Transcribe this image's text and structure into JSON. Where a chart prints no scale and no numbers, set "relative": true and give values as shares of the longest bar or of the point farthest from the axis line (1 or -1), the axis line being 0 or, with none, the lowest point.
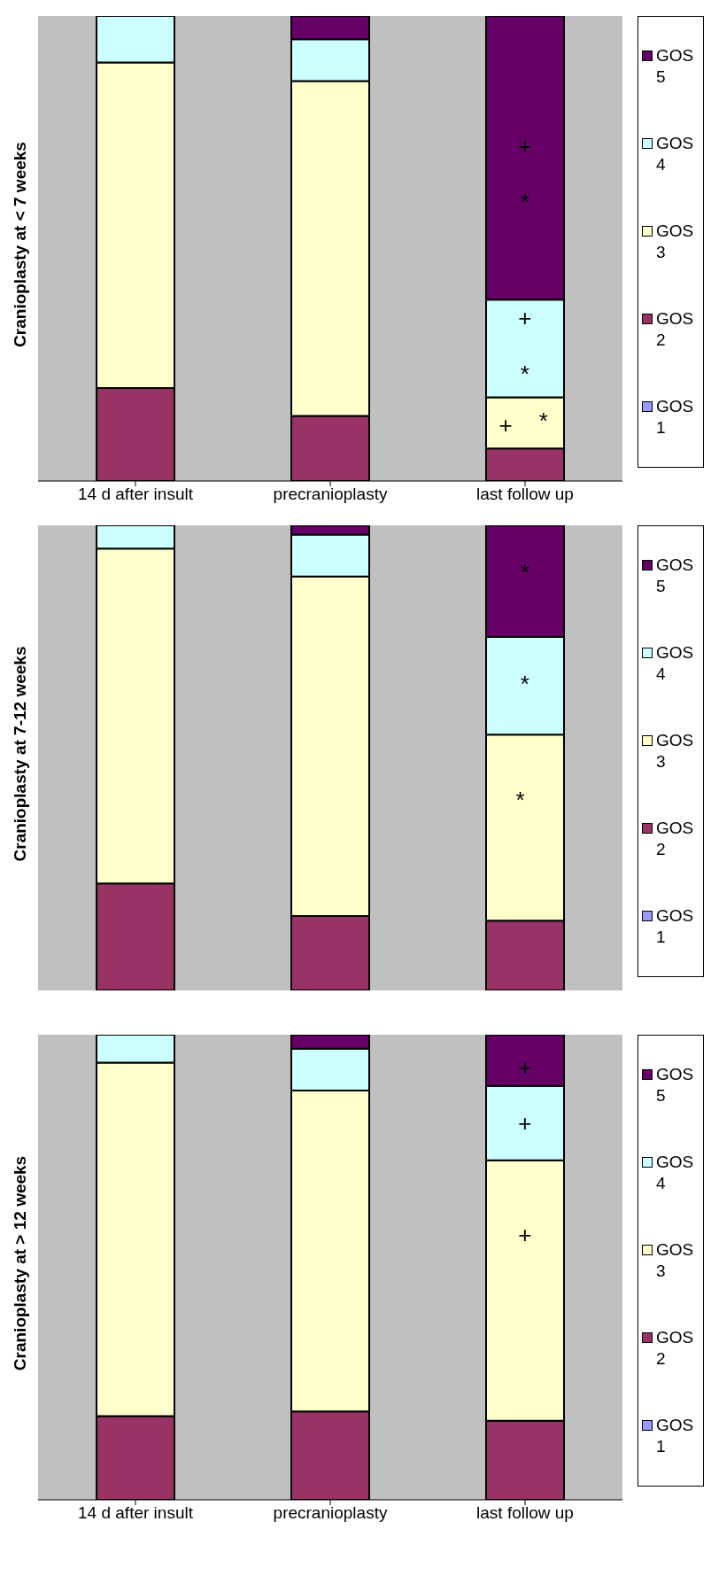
{
  "chart_data": [
    {
      "type": "bar",
      "stacked": true,
      "relative": true,
      "ylabel": "Cranioplasty at < 7 weeks",
      "categories": [
        "14 d after insult",
        "precranioplasty",
        "last follow up"
      ],
      "legend": "right",
      "series": [
        {
          "name": "GOS 1",
          "color": "#9999ff",
          "values": [
            0,
            0,
            0
          ]
        },
        {
          "name": "GOS 2",
          "color": "#993366",
          "values": [
            0.2,
            0.14,
            0.07
          ]
        },
        {
          "name": "GOS 3",
          "color": "#ffffcc",
          "values": [
            0.7,
            0.72,
            0.11
          ]
        },
        {
          "name": "GOS 4",
          "color": "#ccffff",
          "values": [
            0.1,
            0.09,
            0.21
          ]
        },
        {
          "name": "GOS 5",
          "color": "#660066",
          "values": [
            0,
            0.05,
            0.61
          ]
        }
      ],
      "annotations": [
        "+",
        "*",
        "+",
        "*",
        "+",
        "*"
      ]
    },
    {
      "type": "bar",
      "stacked": true,
      "relative": true,
      "ylabel": "Cranioplasty at 7-12 weeks",
      "categories": [
        null,
        null,
        null
      ],
      "legend": "right",
      "tick_labels": false,
      "series": [
        {
          "name": "GOS 1",
          "color": "#9999ff",
          "values": [
            0,
            0,
            0
          ]
        },
        {
          "name": "GOS 2",
          "color": "#993366",
          "values": [
            0.23,
            0.16,
            0.15
          ]
        },
        {
          "name": "GOS 3",
          "color": "#ffffcc",
          "values": [
            0.72,
            0.73,
            0.4
          ]
        },
        {
          "name": "GOS 4",
          "color": "#ccffff",
          "values": [
            0.05,
            0.09,
            0.21
          ]
        },
        {
          "name": "GOS 5",
          "color": "#660066",
          "values": [
            0,
            0.02,
            0.24
          ]
        }
      ],
      "annotations": [
        "*",
        "*",
        "*"
      ]
    },
    {
      "type": "bar",
      "stacked": true,
      "relative": true,
      "ylabel": "Cranioplasty at > 12 weeks",
      "categories": [
        "14 d after insult",
        "precranioplasty",
        "last follow up"
      ],
      "legend": "right",
      "series": [
        {
          "name": "GOS 1",
          "color": "#9999ff",
          "values": [
            0,
            0,
            0
          ]
        },
        {
          "name": "GOS 2",
          "color": "#993366",
          "values": [
            0.18,
            0.19,
            0.17
          ]
        },
        {
          "name": "GOS 3",
          "color": "#ffffcc",
          "values": [
            0.76,
            0.69,
            0.56
          ]
        },
        {
          "name": "GOS 4",
          "color": "#ccffff",
          "values": [
            0.06,
            0.09,
            0.16
          ]
        },
        {
          "name": "GOS 5",
          "color": "#660066",
          "values": [
            0,
            0.03,
            0.11
          ]
        }
      ],
      "annotations": [
        "+",
        "+",
        "+"
      ]
    }
  ]
}
